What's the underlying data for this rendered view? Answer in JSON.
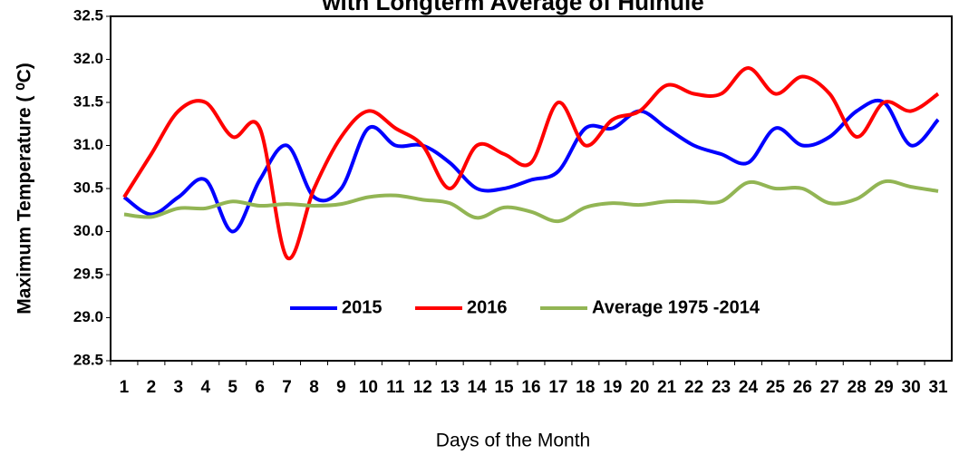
{
  "chart_data": {
    "type": "line",
    "title": "with Longterm Average of Hulhule",
    "x_label": "Days of the Month",
    "y_label": "Maximum Temperature ( ⁰C)",
    "categories": [
      "1",
      "2",
      "3",
      "4",
      "5",
      "6",
      "7",
      "8",
      "9",
      "10",
      "11",
      "12",
      "13",
      "14",
      "15",
      "16",
      "17",
      "18",
      "19",
      "20",
      "21",
      "22",
      "23",
      "24",
      "25",
      "26",
      "27",
      "28",
      "29",
      "30",
      "31"
    ],
    "series": [
      {
        "name": "2015",
        "color": "#0000ff",
        "values": [
          30.4,
          30.2,
          30.4,
          30.6,
          30.0,
          30.6,
          31.0,
          30.4,
          30.5,
          31.2,
          31.0,
          31.0,
          30.8,
          30.5,
          30.5,
          30.6,
          30.7,
          31.2,
          31.2,
          31.4,
          31.2,
          31.0,
          30.9,
          30.8,
          31.2,
          31.0,
          31.1,
          31.4,
          31.5,
          31.0,
          31.3
        ]
      },
      {
        "name": "2016",
        "color": "#ff0000",
        "values": [
          30.4,
          30.9,
          31.4,
          31.5,
          31.1,
          31.2,
          29.7,
          30.5,
          31.1,
          31.4,
          31.2,
          31.0,
          30.5,
          31.0,
          30.9,
          30.8,
          31.5,
          31.0,
          31.3,
          31.4,
          31.7,
          31.6,
          31.6,
          31.9,
          31.6,
          31.8,
          31.6,
          31.1,
          31.5,
          31.4,
          31.6
        ]
      },
      {
        "name": "Average 1975 -2014",
        "color": "#92b554",
        "values": [
          30.2,
          30.17,
          30.27,
          30.27,
          30.35,
          30.3,
          30.32,
          30.3,
          30.32,
          30.4,
          30.42,
          30.37,
          30.33,
          30.16,
          30.28,
          30.23,
          30.12,
          30.28,
          30.33,
          30.31,
          30.35,
          30.35,
          30.35,
          30.57,
          30.5,
          30.5,
          30.33,
          30.38,
          30.58,
          30.52,
          30.47
        ]
      }
    ],
    "ylim": [
      28.5,
      32.5
    ],
    "yticks": [
      28.5,
      29.0,
      29.5,
      30.0,
      30.5,
      31.0,
      31.5,
      32.0,
      32.5
    ],
    "grid": false,
    "legend": "bottom"
  }
}
